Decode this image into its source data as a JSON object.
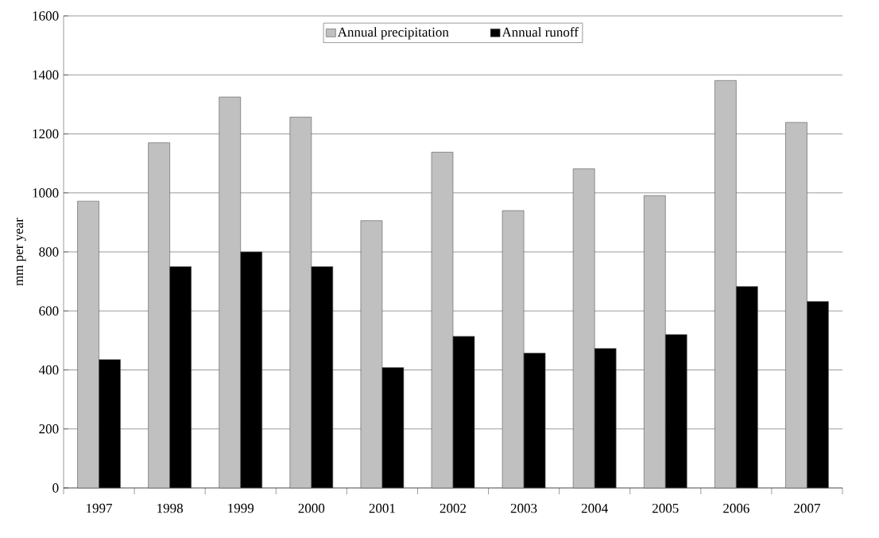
{
  "chart_data": {
    "type": "bar",
    "ylabel": "mm per year",
    "categories": [
      "1997",
      "1998",
      "1999",
      "2000",
      "2001",
      "2002",
      "2003",
      "2004",
      "2005",
      "2006",
      "2007"
    ],
    "series": [
      {
        "name": "Annual precipitation",
        "color": "#c0c0c0",
        "values": [
          972,
          1170,
          1325,
          1257,
          906,
          1138,
          940,
          1082,
          991,
          1381,
          1239
        ]
      },
      {
        "name": "Annual runoff",
        "color": "#000000",
        "values": [
          435,
          750,
          800,
          750,
          408,
          514,
          457,
          473,
          520,
          683,
          632
        ]
      }
    ],
    "ylim": [
      0,
      1600
    ],
    "yticks": [
      0,
      200,
      400,
      600,
      800,
      1000,
      1200,
      1400,
      1600
    ],
    "grid": "y",
    "legend": "top"
  }
}
